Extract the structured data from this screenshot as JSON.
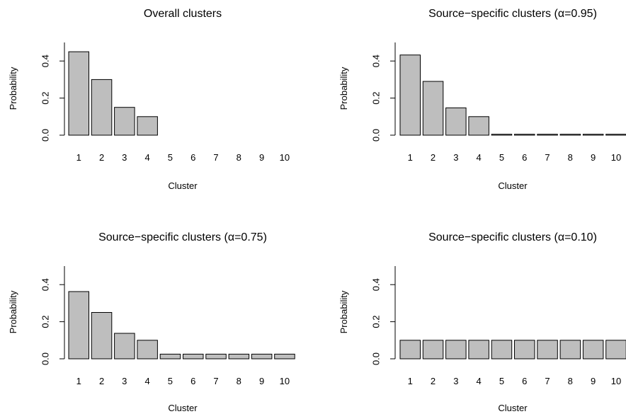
{
  "figure": {
    "background": "#ffffff",
    "bar_fill": "#bebebe",
    "bar_stroke": "#000000"
  },
  "chart_data": [
    {
      "type": "bar",
      "title": "Overall clusters",
      "xlabel": "Cluster",
      "ylabel": "Probability",
      "categories": [
        "1",
        "2",
        "3",
        "4",
        "5",
        "6",
        "7",
        "8",
        "9",
        "10"
      ],
      "values": [
        0.45,
        0.3,
        0.15,
        0.1,
        0.0,
        0.0,
        0.0,
        0.0,
        0.0,
        0.0
      ],
      "ylim": [
        0,
        0.5
      ],
      "yticks": [
        "0.0",
        "0.2",
        "0.4"
      ],
      "ytick_values": [
        0.0,
        0.2,
        0.4
      ],
      "grid": false
    },
    {
      "type": "bar",
      "title": "Source−specific clusters (α=0.95)",
      "xlabel": "Cluster",
      "ylabel": "Probability",
      "categories": [
        "1",
        "2",
        "3",
        "4",
        "5",
        "6",
        "7",
        "8",
        "9",
        "10"
      ],
      "values": [
        0.4325,
        0.29,
        0.1475,
        0.1,
        0.005,
        0.005,
        0.005,
        0.005,
        0.005,
        0.005
      ],
      "ylim": [
        0,
        0.5
      ],
      "yticks": [
        "0.0",
        "0.2",
        "0.4"
      ],
      "ytick_values": [
        0.0,
        0.2,
        0.4
      ],
      "grid": false
    },
    {
      "type": "bar",
      "title": "Source−specific clusters (α=0.75)",
      "xlabel": "Cluster",
      "ylabel": "Probability",
      "categories": [
        "1",
        "2",
        "3",
        "4",
        "5",
        "6",
        "7",
        "8",
        "9",
        "10"
      ],
      "values": [
        0.3625,
        0.25,
        0.1375,
        0.1,
        0.025,
        0.025,
        0.025,
        0.025,
        0.025,
        0.025
      ],
      "ylim": [
        0,
        0.5
      ],
      "yticks": [
        "0.0",
        "0.2",
        "0.4"
      ],
      "ytick_values": [
        0.0,
        0.2,
        0.4
      ],
      "grid": false
    },
    {
      "type": "bar",
      "title": "Source−specific clusters (α=0.10)",
      "xlabel": "Cluster",
      "ylabel": "Probability",
      "categories": [
        "1",
        "2",
        "3",
        "4",
        "5",
        "6",
        "7",
        "8",
        "9",
        "10"
      ],
      "values": [
        0.1,
        0.1,
        0.1,
        0.1,
        0.1,
        0.1,
        0.1,
        0.1,
        0.1,
        0.1
      ],
      "ylim": [
        0,
        0.5
      ],
      "yticks": [
        "0.0",
        "0.2",
        "0.4"
      ],
      "ytick_values": [
        0.0,
        0.2,
        0.4
      ],
      "grid": false
    }
  ]
}
